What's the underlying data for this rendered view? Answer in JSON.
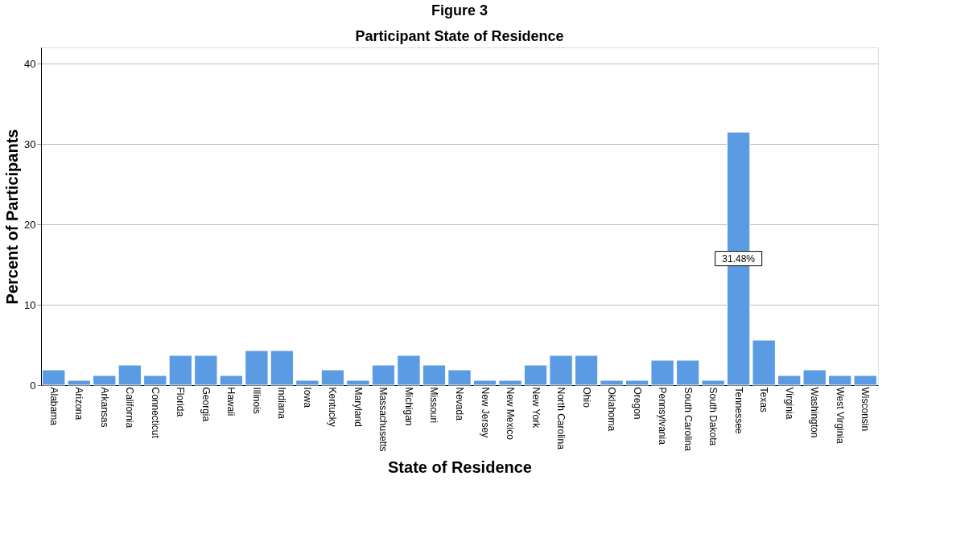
{
  "chart_data": {
    "type": "bar",
    "title": "Figure 3",
    "subtitle": "Participant State of Residence",
    "xlabel": "State of Residence",
    "ylabel": "Percent of Participants",
    "categories": [
      "Alabama",
      "Arizona",
      "Arkansas",
      "California",
      "Connecticut",
      "Florida",
      "Georgia",
      "Hawaii",
      "Illinois",
      "Indiana",
      "Iowa",
      "Kentucky",
      "Maryland",
      "Massachusetts",
      "Michigan",
      "Missouri",
      "Nevada",
      "New Jersey",
      "New Mexico",
      "New York",
      "North Carolina",
      "Ohio",
      "Oklahoma",
      "Oregon",
      "Pennsylvania",
      "South Carolina",
      "South Dakota",
      "Tennessee",
      "Texas",
      "Virginia",
      "Washington",
      "West Virginia",
      "Wisconsin"
    ],
    "values": [
      1.9,
      0.6,
      1.2,
      2.5,
      1.2,
      3.7,
      3.7,
      1.2,
      4.3,
      4.3,
      0.6,
      1.9,
      0.6,
      2.5,
      3.7,
      2.5,
      1.9,
      0.6,
      0.6,
      2.5,
      3.7,
      3.7,
      0.6,
      0.6,
      3.1,
      3.1,
      0.6,
      31.48,
      5.6,
      1.2,
      1.9,
      1.2,
      1.2
    ],
    "value_labels": [
      null,
      null,
      null,
      null,
      null,
      null,
      null,
      null,
      null,
      null,
      null,
      null,
      null,
      null,
      null,
      null,
      null,
      null,
      null,
      null,
      null,
      null,
      null,
      null,
      null,
      null,
      null,
      "31.48%",
      null,
      null,
      null,
      null,
      null
    ],
    "color": "#5b9be3",
    "ylim": [
      0,
      42
    ],
    "yticks": [
      0,
      10,
      20,
      30,
      40
    ],
    "grid": "y"
  }
}
